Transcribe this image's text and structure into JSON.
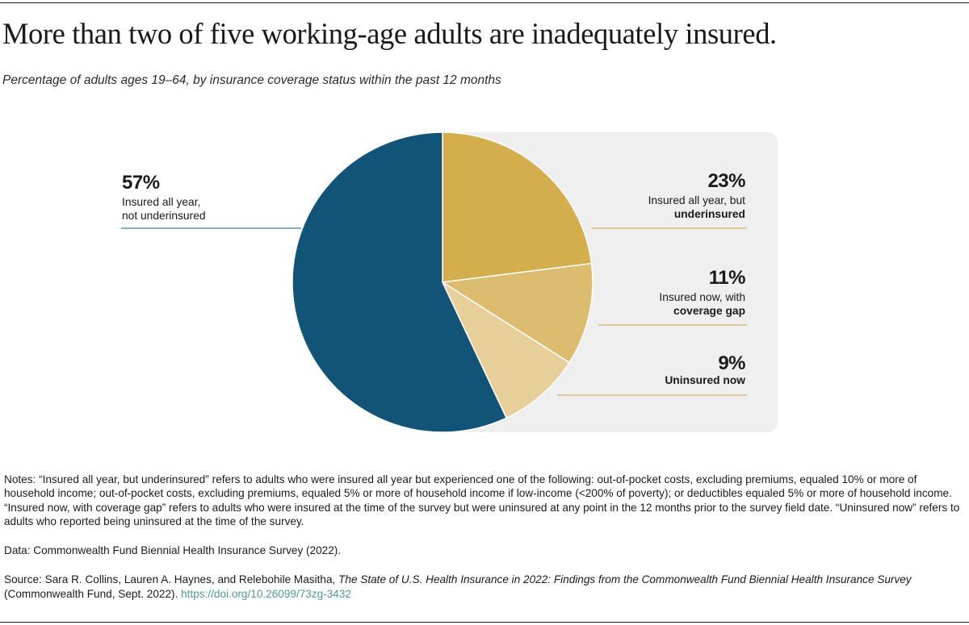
{
  "title": "More than two of five working-age adults are inadequately insured.",
  "subtitle": "Percentage of adults ages 19–64, by insurance coverage status within the past 12 months",
  "chart_data": {
    "type": "pie",
    "title": "More than two of five working-age adults are inadequately insured.",
    "subtitle": "Percentage of adults ages 19–64, by insurance coverage status within the past 12 months",
    "slices": [
      {
        "label_line1": "Insured all year, but",
        "label_line2": "underinsured",
        "value": 23,
        "display": "23%",
        "color": "#d4ad4c"
      },
      {
        "label_line1": "Insured now, with",
        "label_line2": "coverage gap",
        "value": 11,
        "display": "11%",
        "color": "#dcbd70"
      },
      {
        "label_line1": "",
        "label_line2": "Uninsured now",
        "value": 9,
        "display": "9%",
        "color": "#e6cf98"
      },
      {
        "label_line1": "Insured all year,",
        "label_line2": "not underinsured",
        "value": 57,
        "display": "57%",
        "color": "#125478"
      }
    ],
    "start_angle": "12 o'clock, clockwise",
    "legend": "none (direct labels)"
  },
  "colors": {
    "panel_background": "#efefef",
    "leader_line_gold": "#c9a33f",
    "leader_line_navy": "#125478",
    "link": "#4e9a8e"
  },
  "notes": {
    "notes_text": "Notes: “Insured all year, but underinsured” refers to adults who were insured all year but experienced one of the following: out-of-pocket costs, excluding premiums, equaled 10% or more of household income; out-of-pocket costs, excluding premiums, equaled 5% or more of household income if low-income (<200% of poverty); or deductibles equaled 5% or more of household income. “Insured now, with coverage gap” refers to adults who were insured at the time of the survey but were uninsured at any point in the 12 months prior to the survey field date. “Uninsured now” refers to adults who reported being uninsured at the time of the survey.",
    "data_text": "Data: Commonwealth Fund Biennial Health Insurance Survey (2022).",
    "source_prefix": "Source: Sara R. Collins, Lauren A. Haynes, and Relebohile Masitha, ",
    "source_title": "The State of U.S. Health Insurance in 2022: Findings from the Commonwealth Fund Biennial Health Insurance Survey",
    "source_suffix": " (Commonwealth Fund, Sept. 2022). ",
    "source_link": "https://doi.org/10.26099/73zg-3432"
  }
}
